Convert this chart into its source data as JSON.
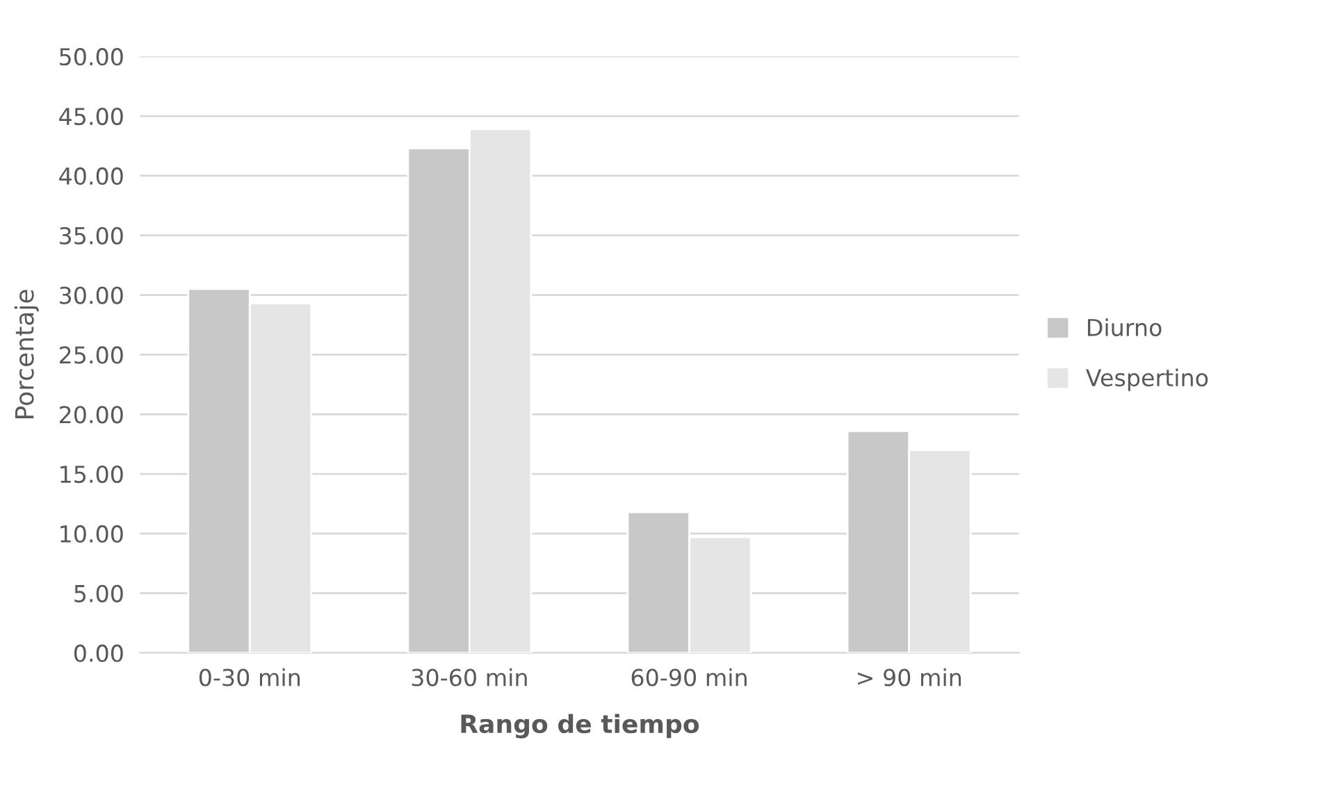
{
  "chart_data": {
    "type": "bar",
    "xlabel": "Rango de tiempo",
    "ylabel": "Porcentaje",
    "categories": [
      "0-30 min",
      "30-60 min",
      "60-90 min",
      "> 90 min"
    ],
    "series": [
      {
        "name": "Diurno",
        "color": "#c8c8c8",
        "values": [
          30.5,
          42.3,
          11.8,
          18.6
        ]
      },
      {
        "name": "Vespertino",
        "color": "#e5e5e5",
        "values": [
          29.3,
          43.9,
          9.7,
          17.0
        ]
      }
    ],
    "ylim": [
      0,
      50
    ],
    "yticks": [
      {
        "value": 0,
        "label": "0.00"
      },
      {
        "value": 5,
        "label": "5.00"
      },
      {
        "value": 10,
        "label": "10.00"
      },
      {
        "value": 15,
        "label": "15.00"
      },
      {
        "value": 20,
        "label": "20.00"
      },
      {
        "value": 25,
        "label": "25.00"
      },
      {
        "value": 30,
        "label": "30.00"
      },
      {
        "value": 35,
        "label": "35.00"
      },
      {
        "value": 40,
        "label": "40.00"
      },
      {
        "value": 45,
        "label": "45.00"
      },
      {
        "value": 50,
        "label": "50.00"
      }
    ],
    "grid": "y",
    "legend": "right"
  }
}
